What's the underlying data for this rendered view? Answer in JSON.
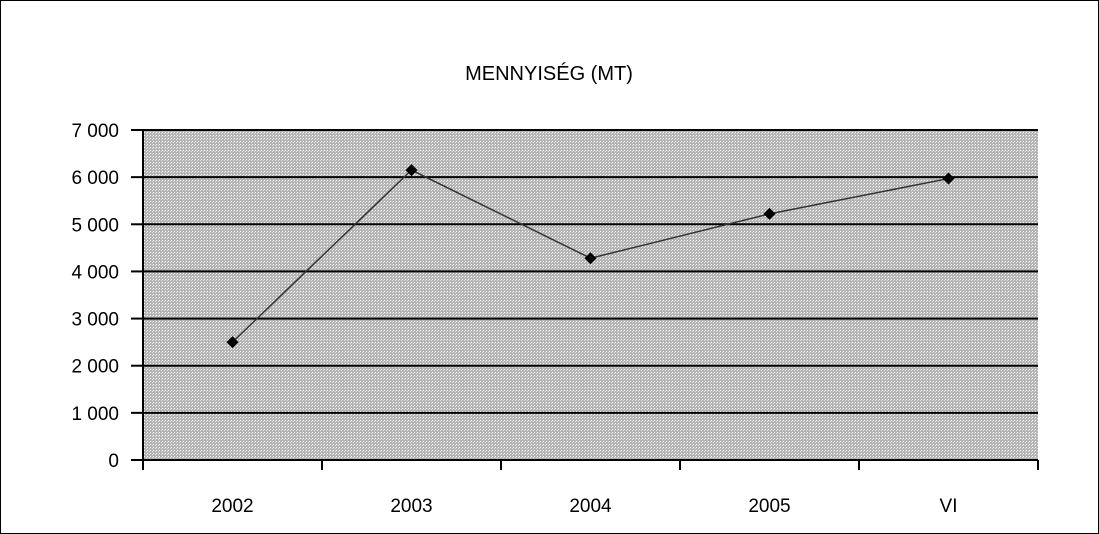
{
  "chart_data": {
    "type": "line",
    "title": "MENNYISÉG (MT)",
    "xlabel": "",
    "ylabel": "",
    "categories": [
      "2002",
      "2003",
      "2004",
      "2005",
      "VI"
    ],
    "series": [
      {
        "values": [
          2500,
          6150,
          4280,
          5220,
          5970
        ]
      }
    ],
    "ylim": [
      0,
      7000
    ],
    "yticks": [
      0,
      1000,
      2000,
      3000,
      4000,
      5000,
      6000,
      7000
    ],
    "ytick_labels": [
      "0",
      "1 000",
      "2 000",
      "3 000",
      "4 000",
      "5 000",
      "6 000",
      "7 000"
    ],
    "grid": true,
    "legend": "none",
    "colors": {
      "plot_background": "#c8c8c8",
      "line": "#333333",
      "marker": "#000000",
      "gridline": "#000000"
    }
  }
}
